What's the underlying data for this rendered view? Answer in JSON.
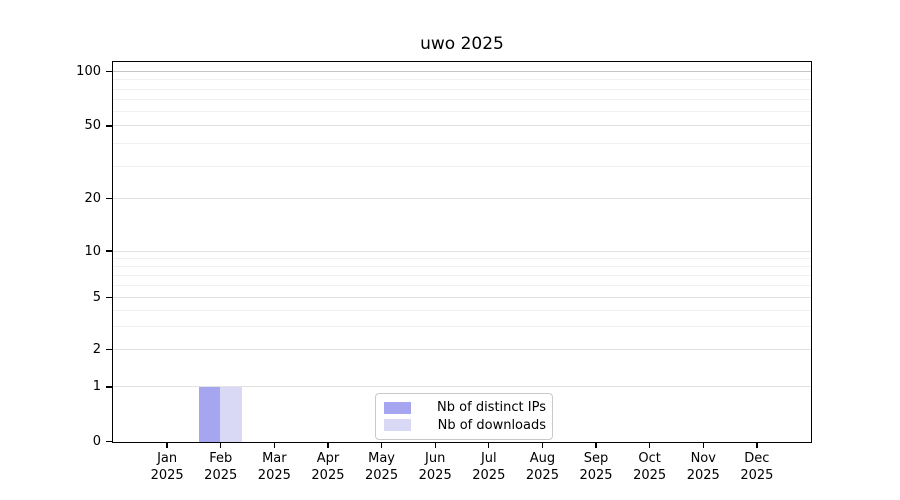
{
  "chart_data": {
    "type": "bar",
    "title": "uwo 2025",
    "categories": [
      "Jan",
      "Feb",
      "Mar",
      "Apr",
      "May",
      "Jun",
      "Jul",
      "Aug",
      "Sep",
      "Oct",
      "Nov",
      "Dec"
    ],
    "year": "2025",
    "series": [
      {
        "name": "Nb of distinct IPs",
        "color": "#a6a6f0",
        "values": [
          0,
          1,
          0,
          0,
          0,
          0,
          0,
          0,
          0,
          0,
          0,
          0
        ]
      },
      {
        "name": "Nb of downloads",
        "color": "#d9d9f6",
        "values": [
          0,
          1,
          0,
          0,
          0,
          0,
          0,
          0,
          0,
          0,
          0,
          0
        ]
      }
    ],
    "y_axis": {
      "scale": "symlog",
      "major_ticks": [
        0,
        1,
        2,
        5,
        10,
        20,
        50,
        100
      ],
      "minor_gridlines": [
        3,
        4,
        6,
        7,
        8,
        9,
        30,
        40,
        60,
        70,
        80,
        90
      ],
      "range": [
        0,
        110
      ]
    },
    "legend": {
      "position": "lower center"
    },
    "grid": true,
    "colors": {
      "axis": "#000000",
      "grid_minor": "#f0f0f0",
      "grid_major": "#e2e2e2",
      "grid_top": "#c4c4c4"
    }
  }
}
